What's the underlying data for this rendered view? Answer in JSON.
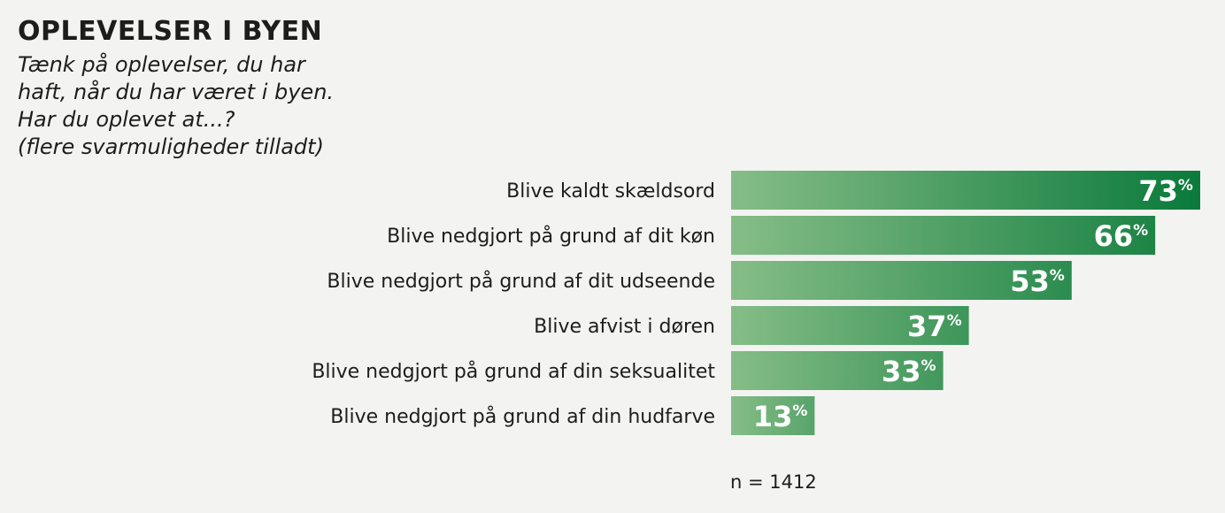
{
  "header": {
    "title": "OPLEVELSER I BYEN",
    "subtitle_lines": [
      "Tænk på oplevelser, du har",
      "haft, når du har været i byen.",
      "Har du oplevet at...?",
      "(flere svarmuligheder tilladt)"
    ]
  },
  "chart_data": {
    "type": "bar",
    "orientation": "horizontal",
    "categories": [
      "Blive kaldt skældsord",
      "Blive nedgjort på grund af dit køn",
      "Blive nedgjort på grund af dit udseende",
      "Blive afvist i døren",
      "Blive nedgjort på grund af din seksualitet",
      "Blive nedgjort på grund af din hudfarve"
    ],
    "values": [
      73,
      66,
      53,
      37,
      33,
      13
    ],
    "value_suffix": "%",
    "xlim": [
      0,
      100
    ],
    "bar_color_start": "#86bd87",
    "bar_color_end": "#0a7a3a",
    "grid": false,
    "legend": false
  },
  "footnote": "n = 1412"
}
